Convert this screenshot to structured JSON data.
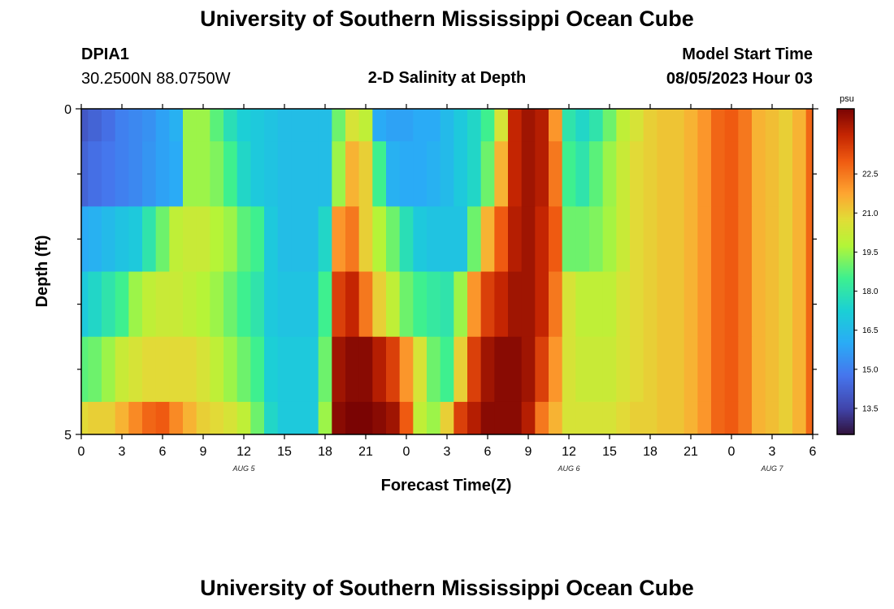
{
  "header": {
    "title": "University of Southern Mississippi Ocean Cube",
    "station_id": "DPIA1",
    "station_coords": "30.2500N  88.0750W",
    "plot_title": "2-D Salinity at Depth",
    "start_time_label": "Model Start Time",
    "start_time_value": "08/05/2023 Hour 03"
  },
  "footer": {
    "title": "University of Southern Mississippi Ocean Cube"
  },
  "chart_data": {
    "type": "heatmap",
    "title": "2-D Salinity at Depth",
    "xlabel": "Forecast Time(Z)",
    "ylabel": "Depth (ft)",
    "x_tick_labels": [
      "0",
      "3",
      "6",
      "9",
      "12",
      "15",
      "18",
      "21",
      "0",
      "3",
      "6",
      "9",
      "12",
      "15",
      "18",
      "21",
      "0",
      "3",
      "6"
    ],
    "x_range_hours": [
      0,
      54
    ],
    "day_labels": [
      {
        "label": "AUG 5",
        "hour": 12
      },
      {
        "label": "AUG 6",
        "hour": 36
      },
      {
        "label": "AUG 7",
        "hour": 51
      }
    ],
    "y_tick_labels": [
      "0",
      "5"
    ],
    "ylim": [
      0,
      5
    ],
    "depth_bins": [
      {
        "from": 0,
        "to": 0.5
      },
      {
        "from": 0.5,
        "to": 1.5
      },
      {
        "from": 1.5,
        "to": 2.5
      },
      {
        "from": 2.5,
        "to": 3.5
      },
      {
        "from": 3.5,
        "to": 4.5
      },
      {
        "from": 4.5,
        "to": 5
      }
    ],
    "hours": [
      0,
      1,
      2,
      3,
      4,
      5,
      6,
      7,
      8,
      9,
      10,
      11,
      12,
      13,
      14,
      15,
      16,
      17,
      18,
      19,
      20,
      21,
      22,
      23,
      24,
      25,
      26,
      27,
      28,
      29,
      30,
      31,
      32,
      33,
      34,
      35,
      36,
      37,
      38,
      39,
      40,
      41,
      42,
      43,
      44,
      45,
      46,
      47,
      48,
      49,
      50,
      51,
      52,
      53,
      54
    ],
    "salinity": [
      [
        14.0,
        14.3,
        14.6,
        15.0,
        15.2,
        15.4,
        15.8,
        16.2,
        19.5,
        19.5,
        18.8,
        17.8,
        17.2,
        17.0,
        16.8,
        16.6,
        16.6,
        16.6,
        16.6,
        19.0,
        20.5,
        20.0,
        16.0,
        15.8,
        15.8,
        16.0,
        16.0,
        16.5,
        17.0,
        17.5,
        18.5,
        20.5,
        24.0,
        24.5,
        24.2,
        22.0,
        18.0,
        17.5,
        18.0,
        19.0,
        20.0,
        20.5,
        21.0,
        21.2,
        21.2,
        21.5,
        22.0,
        22.8,
        23.0,
        22.5,
        21.5,
        21.3,
        21.0,
        21.5,
        22.8
      ],
      [
        14.3,
        14.6,
        14.8,
        15.0,
        15.2,
        15.5,
        15.8,
        16.0,
        19.5,
        19.5,
        19.2,
        18.5,
        17.5,
        17.0,
        16.8,
        16.6,
        16.6,
        16.6,
        16.6,
        19.5,
        21.5,
        21.0,
        18.5,
        16.2,
        16.0,
        16.0,
        16.2,
        16.5,
        17.0,
        17.5,
        19.0,
        21.5,
        24.0,
        24.5,
        24.2,
        22.5,
        18.5,
        18.0,
        18.8,
        19.5,
        20.2,
        20.8,
        21.0,
        21.2,
        21.2,
        21.5,
        22.0,
        22.8,
        23.0,
        22.5,
        21.5,
        21.3,
        21.0,
        21.5,
        22.8
      ],
      [
        16.0,
        16.2,
        16.5,
        16.8,
        17.0,
        18.0,
        19.0,
        20.0,
        20.2,
        20.2,
        19.8,
        19.5,
        18.8,
        18.5,
        17.0,
        16.6,
        16.6,
        16.6,
        17.5,
        22.0,
        22.5,
        21.0,
        19.8,
        19.0,
        17.8,
        17.0,
        16.8,
        16.8,
        16.8,
        19.0,
        21.5,
        23.0,
        24.2,
        24.5,
        24.0,
        23.0,
        19.0,
        19.0,
        19.2,
        19.6,
        20.2,
        20.8,
        21.0,
        21.2,
        21.2,
        21.5,
        22.0,
        22.8,
        23.0,
        22.5,
        21.5,
        21.3,
        21.0,
        21.5,
        22.8
      ],
      [
        17.0,
        17.5,
        18.0,
        18.5,
        19.5,
        20.0,
        20.2,
        20.2,
        20.0,
        19.8,
        19.5,
        19.0,
        18.5,
        18.0,
        17.0,
        16.8,
        16.8,
        16.8,
        18.5,
        23.5,
        24.0,
        22.5,
        21.0,
        20.0,
        19.0,
        18.5,
        18.2,
        18.0,
        19.5,
        22.0,
        23.5,
        24.0,
        24.5,
        24.5,
        24.0,
        22.5,
        20.5,
        20.0,
        20.0,
        20.0,
        20.5,
        20.8,
        21.0,
        21.2,
        21.2,
        21.5,
        22.0,
        22.8,
        23.0,
        22.5,
        21.5,
        21.3,
        21.0,
        21.5,
        22.8
      ],
      [
        18.8,
        19.0,
        19.5,
        20.2,
        20.5,
        20.8,
        20.8,
        20.8,
        20.8,
        20.5,
        20.0,
        19.5,
        19.0,
        18.5,
        17.2,
        17.0,
        17.0,
        17.0,
        19.0,
        24.5,
        24.8,
        24.8,
        24.2,
        23.5,
        22.0,
        20.5,
        19.0,
        18.5,
        21.0,
        23.5,
        24.5,
        24.8,
        24.8,
        24.5,
        23.5,
        22.0,
        20.5,
        20.2,
        20.2,
        20.2,
        20.5,
        20.8,
        21.0,
        21.2,
        21.2,
        21.5,
        22.0,
        22.8,
        23.0,
        22.5,
        21.5,
        21.3,
        21.0,
        21.5,
        22.8
      ],
      [
        20.8,
        21.0,
        21.0,
        21.5,
        22.2,
        22.8,
        23.0,
        22.2,
        21.5,
        21.0,
        20.8,
        20.5,
        20.0,
        19.0,
        17.5,
        17.0,
        17.0,
        17.0,
        19.5,
        24.8,
        25.0,
        25.0,
        24.8,
        24.5,
        23.0,
        20.0,
        19.5,
        21.0,
        23.5,
        24.2,
        24.8,
        24.8,
        24.8,
        24.2,
        22.5,
        21.5,
        20.5,
        20.5,
        20.5,
        20.5,
        20.8,
        21.0,
        21.0,
        21.2,
        21.2,
        21.5,
        22.0,
        22.8,
        23.0,
        22.5,
        21.5,
        21.3,
        21.0,
        21.5,
        22.8
      ]
    ],
    "colorbar": {
      "unit": "psu",
      "tick_labels": [
        "22.5",
        "21.0",
        "19.5",
        "18.0",
        "16.5",
        "15.0",
        "13.5"
      ],
      "tick_values": [
        22.5,
        21.0,
        19.5,
        18.0,
        16.5,
        15.0,
        13.5
      ],
      "range": [
        12.5,
        25.0
      ]
    },
    "grid": false
  }
}
